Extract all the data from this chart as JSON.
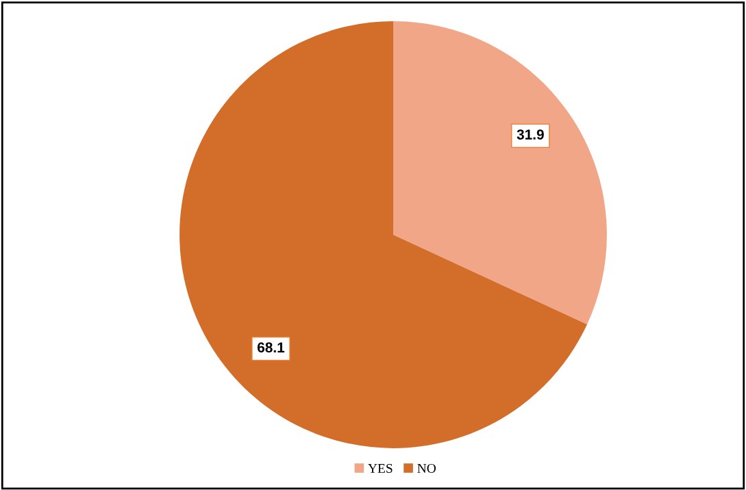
{
  "chart_data": {
    "type": "pie",
    "categories": [
      "YES",
      "NO"
    ],
    "values": [
      31.9,
      68.1
    ],
    "colors": [
      "#f0a687",
      "#d36d2a"
    ],
    "data_labels": true,
    "legend": "bottom"
  }
}
